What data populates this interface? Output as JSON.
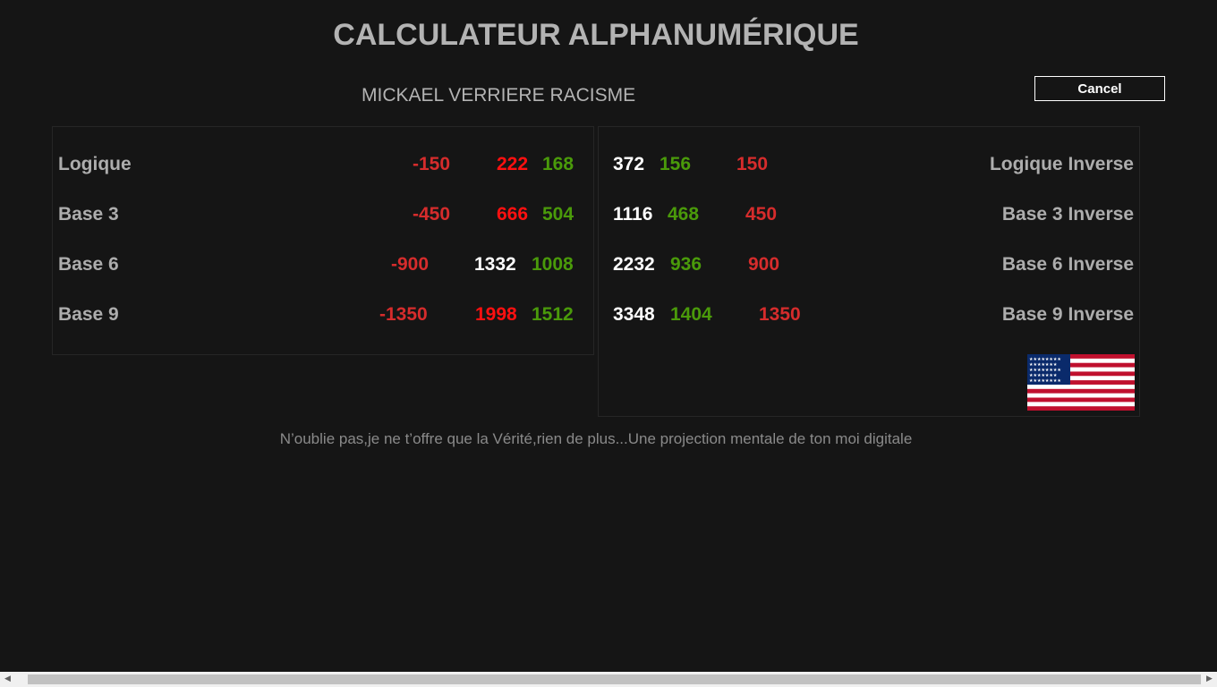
{
  "title": "CALCULATEUR ALPHANUMÉRIQUE",
  "subtitle": "MICKAEL VERRIERE RACISME",
  "cancel_label": "Cancel",
  "left": {
    "rows": [
      {
        "label": "Logique",
        "values": [
          "-150",
          "222",
          "168"
        ]
      },
      {
        "label": "Base 3",
        "values": [
          "-450",
          "666",
          "504"
        ]
      },
      {
        "label": "Base 6",
        "values": [
          "-900",
          "1332",
          "1008"
        ]
      },
      {
        "label": "Base 9",
        "values": [
          "-1350",
          "1998",
          "1512"
        ]
      }
    ]
  },
  "right": {
    "rows": [
      {
        "label": "Logique Inverse",
        "values": [
          "372",
          "156",
          "150"
        ]
      },
      {
        "label": "Base 3 Inverse",
        "values": [
          "1116",
          "468",
          "450"
        ]
      },
      {
        "label": "Base 6 Inverse",
        "values": [
          "2232",
          "936",
          "900"
        ]
      },
      {
        "label": "Base 9 Inverse",
        "values": [
          "3348",
          "1404",
          "1350"
        ]
      }
    ],
    "flag": "us-flag-icon"
  },
  "footer": "N’oublie pas,je ne t’offre que la Vérité,rien de plus...Une projection mentale de ton moi digitale",
  "colors": {
    "background": "#151515",
    "label": "#adadad",
    "red": "#d62c2c",
    "bright_red": "#ff1010",
    "green": "#4a9a0a",
    "white": "#ffffff"
  }
}
